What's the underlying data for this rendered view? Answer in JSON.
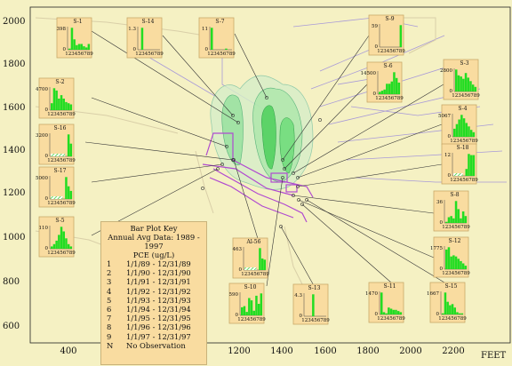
{
  "map": {
    "x_axis_unit": "FEET",
    "x_ticks": [
      "400",
      "600",
      "800",
      "1000",
      "1200",
      "1400",
      "1600",
      "1800",
      "2000",
      "2200"
    ],
    "y_ticks": [
      "2000",
      "1800",
      "1600",
      "1400",
      "1200",
      "1000",
      "800",
      "600"
    ],
    "background_color": "#f5f1c3",
    "plume_color": "#8fdf9a",
    "bar_color": "#22dd22",
    "line_color": "#9a86d6",
    "site_color": "#b04ad0"
  },
  "legend": {
    "title": "Bar Plot Key",
    "line2": "Annual Avg Data: 1989 - 1997",
    "line3": "PCE (ug/L)",
    "rows": [
      {
        "key": "1",
        "value": "1/1/89 - 12/31/89"
      },
      {
        "key": "2",
        "value": "1/1/90 - 12/31/90"
      },
      {
        "key": "3",
        "value": "1/1/91 - 12/31/91"
      },
      {
        "key": "4",
        "value": "1/1/92 - 12/31/92"
      },
      {
        "key": "5",
        "value": "1/1/93 - 12/31/93"
      },
      {
        "key": "6",
        "value": "1/1/94 - 12/31/94"
      },
      {
        "key": "7",
        "value": "1/1/95 - 12/31/95"
      },
      {
        "key": "8",
        "value": "1/1/96 - 12/31/96"
      },
      {
        "key": "9",
        "value": "1/1/97 - 12/31/97"
      },
      {
        "key": "N",
        "value": "No Observation"
      }
    ]
  },
  "bar_plots": [
    {
      "id": "S-1",
      "ymax": "398",
      "xlabel": "123456789",
      "values": [
        0.05,
        0.95,
        0.45,
        0.2,
        0.25,
        0.25,
        0.15,
        0.1,
        0.25
      ],
      "noobs": []
    },
    {
      "id": "S-14",
      "ymax": "1.3",
      "xlabel": "123456789",
      "values": [
        0,
        0.95,
        0,
        0,
        0,
        0,
        0,
        0,
        0
      ],
      "noobs": []
    },
    {
      "id": "S-7",
      "ymax": "11",
      "xlabel": "123456789",
      "values": [
        0.95,
        0,
        0,
        0,
        0,
        0,
        0.05,
        0,
        0
      ],
      "noobs": []
    },
    {
      "id": "S-9",
      "ymax": "59",
      "xlabel": "123456789",
      "values": [
        0,
        0,
        0,
        0,
        0,
        0,
        0,
        0,
        0.95
      ],
      "noobs": []
    },
    {
      "id": "S-6",
      "ymax": "14500",
      "xlabel": "123456789",
      "values": [
        0.1,
        0.15,
        0.2,
        0.45,
        0.45,
        0.55,
        0.95,
        0.7,
        0.5
      ],
      "noobs": []
    },
    {
      "id": "S-3",
      "ymax": "2800",
      "xlabel": "123456789",
      "values": [
        0.95,
        0.7,
        0.65,
        0.55,
        0.8,
        0.6,
        0.45,
        0.3,
        0.2
      ],
      "noobs": []
    },
    {
      "id": "S-2",
      "ymax": "4700",
      "xlabel": "123456789",
      "values": [
        0.3,
        0.95,
        0.85,
        0.5,
        0.65,
        0.5,
        0.35,
        0.3,
        0.25
      ],
      "noobs": []
    },
    {
      "id": "S-4",
      "ymax": "5067",
      "xlabel": "123456789",
      "values": [
        0.35,
        0.55,
        0.75,
        0.95,
        0.8,
        0.6,
        0.45,
        0.3,
        0.2
      ],
      "noobs": []
    },
    {
      "id": "S-16",
      "ymax": "3200",
      "xlabel": "123456789",
      "values": [
        0,
        0,
        0,
        0,
        0,
        0,
        0,
        0.95,
        0.55
      ],
      "noobs": [
        1,
        2,
        3,
        4,
        5,
        6
      ]
    },
    {
      "id": "S-18",
      "ymax": "12",
      "xlabel": "123456789",
      "values": [
        0,
        0,
        0,
        0,
        0,
        0.3,
        0.95,
        0.9,
        0.9
      ],
      "noobs": [
        1,
        2,
        3,
        4
      ]
    },
    {
      "id": "S-17",
      "ymax": "5000",
      "xlabel": "123456789",
      "values": [
        0,
        0,
        0,
        0,
        0,
        0,
        0.95,
        0.55,
        0.35
      ],
      "noobs": [
        1,
        2,
        3,
        4,
        5
      ]
    },
    {
      "id": "S-8",
      "ymax": "36",
      "xlabel": "123456789",
      "values": [
        0.05,
        0.25,
        0.3,
        0.2,
        0.95,
        0.6,
        0.2,
        0.5,
        0.3
      ],
      "noobs": []
    },
    {
      "id": "S-5",
      "ymax": "110",
      "xlabel": "123456789",
      "values": [
        0.1,
        0.2,
        0.35,
        0.6,
        0.95,
        0.75,
        0.45,
        0.2,
        0.1
      ],
      "noobs": []
    },
    {
      "id": "S-12",
      "ymax": "1775",
      "xlabel": "123456789",
      "values": [
        0.85,
        0.95,
        0.55,
        0.6,
        0.55,
        0.45,
        0.35,
        0.25,
        0.15
      ],
      "noobs": []
    },
    {
      "id": "Al-56",
      "ymax": "463",
      "xlabel": "123456789",
      "values": [
        0,
        0,
        0,
        0,
        0,
        0,
        0.95,
        0.5,
        0.45
      ],
      "noobs": [
        1,
        2,
        3,
        4,
        5
      ]
    },
    {
      "id": "S-10",
      "ymax": "590",
      "xlabel": "123456789",
      "values": [
        0.35,
        0.4,
        0.15,
        0.75,
        0.65,
        0.2,
        0.85,
        0.5,
        0.95
      ],
      "noobs": []
    },
    {
      "id": "S-13",
      "ymax": "4.3",
      "xlabel": "123456789",
      "values": [
        0,
        0,
        0,
        0.95,
        0,
        0,
        0,
        0,
        0
      ],
      "noobs": []
    },
    {
      "id": "S-11",
      "ymax": "1470",
      "xlabel": "123456789",
      "values": [
        0.95,
        0.1,
        0.05,
        0.3,
        0.25,
        0.2,
        0.2,
        0.15,
        0.1
      ],
      "noobs": []
    },
    {
      "id": "S-15",
      "ymax": "1667",
      "xlabel": "123456789",
      "values": [
        0.05,
        0.95,
        0.55,
        0.4,
        0.45,
        0.3,
        0.1,
        0.05,
        0.05
      ],
      "noobs": []
    }
  ]
}
